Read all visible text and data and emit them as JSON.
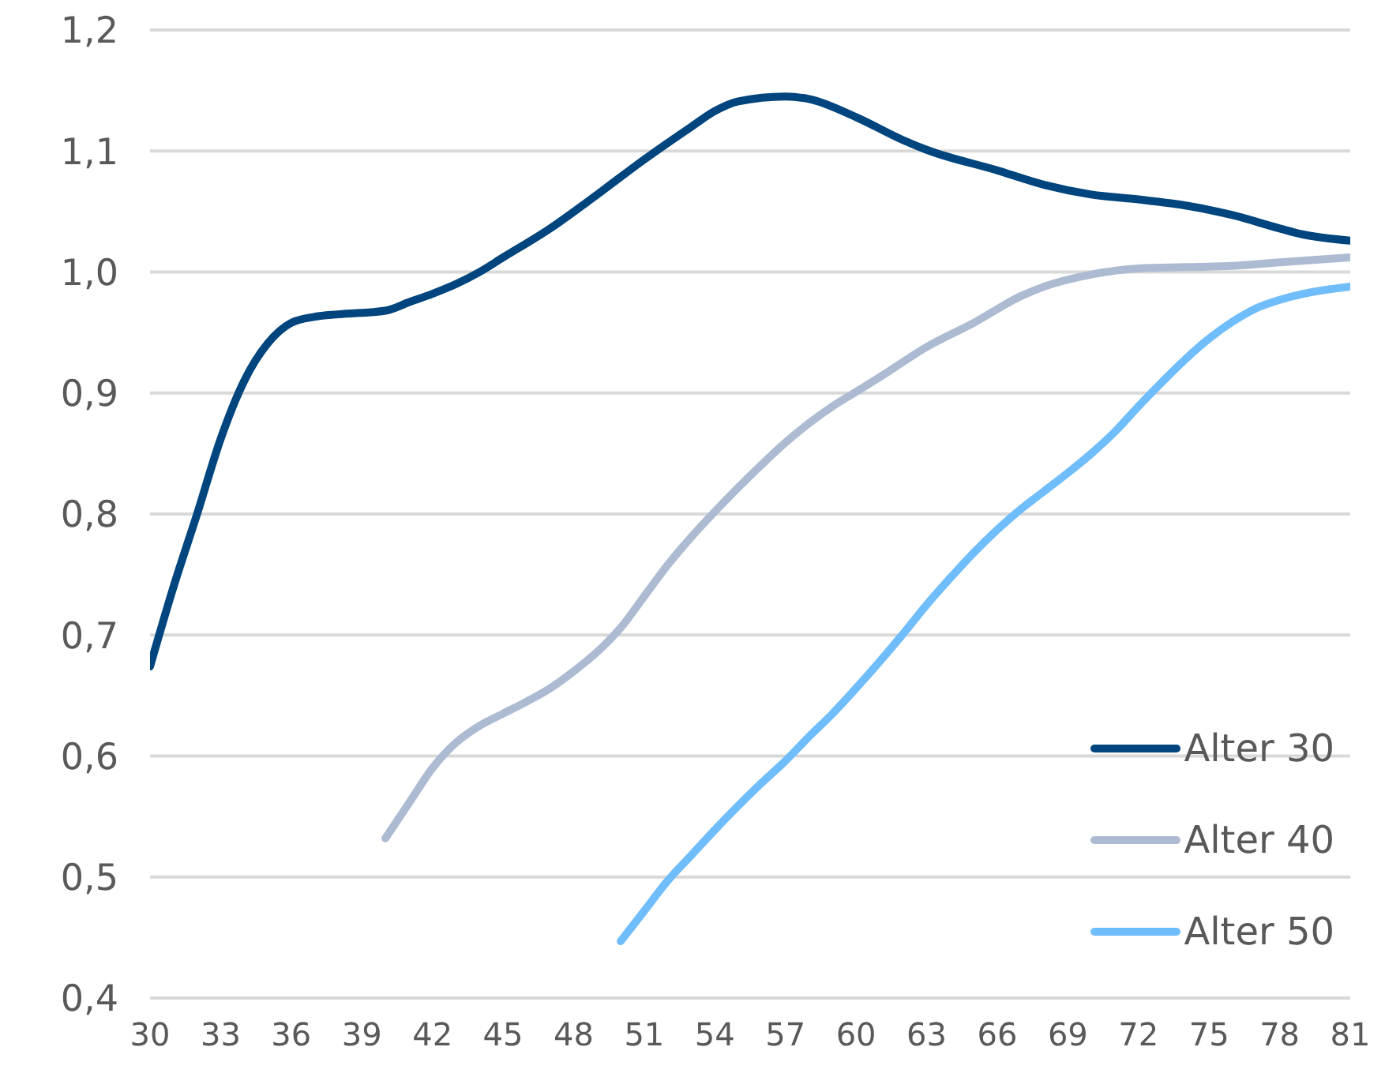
{
  "chart_data": {
    "type": "line",
    "xlim": [
      30,
      81
    ],
    "xticks": [
      30,
      33,
      36,
      39,
      42,
      45,
      48,
      51,
      54,
      57,
      60,
      63,
      66,
      69,
      72,
      75,
      78,
      81
    ],
    "ylim": [
      0.4,
      1.2
    ],
    "yticks": [
      {
        "value": 0.4,
        "label": "0,4"
      },
      {
        "value": 0.5,
        "label": "0,5"
      },
      {
        "value": 0.6,
        "label": "0,6"
      },
      {
        "value": 0.7,
        "label": "0,7"
      },
      {
        "value": 0.8,
        "label": "0,8"
      },
      {
        "value": 0.9,
        "label": "0,9"
      },
      {
        "value": 1.0,
        "label": "1,0"
      },
      {
        "value": 1.1,
        "label": "1,1"
      },
      {
        "value": 1.2,
        "label": "1,2"
      }
    ],
    "grid": "y",
    "legend": "bottom right",
    "marker": "none",
    "line_style": "solid",
    "series": [
      {
        "name": "Alter 30",
        "color": "#00457e",
        "x": [
          30,
          31,
          32,
          33,
          34,
          35,
          36,
          37,
          38,
          40,
          41,
          42,
          43,
          44,
          45,
          47,
          49,
          51,
          53,
          54,
          55,
          57,
          58,
          60,
          62,
          63,
          66,
          68,
          70,
          72,
          74,
          76,
          78,
          79,
          81
        ],
        "values": [
          0.674,
          0.74,
          0.8,
          0.862,
          0.91,
          0.941,
          0.958,
          0.963,
          0.965,
          0.968,
          0.975,
          0.982,
          0.99,
          1.0,
          1.012,
          1.036,
          1.064,
          1.093,
          1.12,
          1.133,
          1.141,
          1.145,
          1.143,
          1.128,
          1.109,
          1.101,
          1.084,
          1.072,
          1.064,
          1.06,
          1.055,
          1.047,
          1.036,
          1.031,
          1.026
        ]
      },
      {
        "name": "Alter 40",
        "color": "#adbbd2",
        "x": [
          40,
          41,
          42,
          43,
          44,
          45,
          46,
          47,
          48,
          49,
          50,
          51,
          52,
          53,
          54,
          55,
          56,
          57,
          58,
          59,
          60,
          61,
          63,
          65,
          67,
          68,
          70,
          72,
          74,
          76,
          78,
          81
        ],
        "values": [
          0.532,
          0.561,
          0.59,
          0.611,
          0.625,
          0.635,
          0.645,
          0.656,
          0.67,
          0.686,
          0.706,
          0.732,
          0.758,
          0.781,
          0.802,
          0.822,
          0.841,
          0.859,
          0.875,
          0.889,
          0.901,
          0.913,
          0.938,
          0.958,
          0.98,
          0.988,
          0.998,
          1.003,
          1.004,
          1.005,
          1.008,
          1.012
        ]
      },
      {
        "name": "Alter 50",
        "color": "#70bdfb",
        "x": [
          50,
          51,
          52,
          53,
          54,
          55,
          56,
          57,
          58,
          59,
          60,
          61,
          62,
          63,
          64,
          65,
          66,
          67,
          68,
          69,
          70,
          71,
          72,
          73,
          74,
          75,
          76,
          77,
          78,
          79,
          81
        ],
        "values": [
          0.447,
          0.472,
          0.497,
          0.518,
          0.539,
          0.559,
          0.578,
          0.596,
          0.616,
          0.635,
          0.656,
          0.678,
          0.701,
          0.725,
          0.747,
          0.768,
          0.787,
          0.804,
          0.819,
          0.834,
          0.85,
          0.868,
          0.889,
          0.909,
          0.928,
          0.945,
          0.959,
          0.97,
          0.977,
          0.982,
          0.988
        ]
      }
    ]
  }
}
